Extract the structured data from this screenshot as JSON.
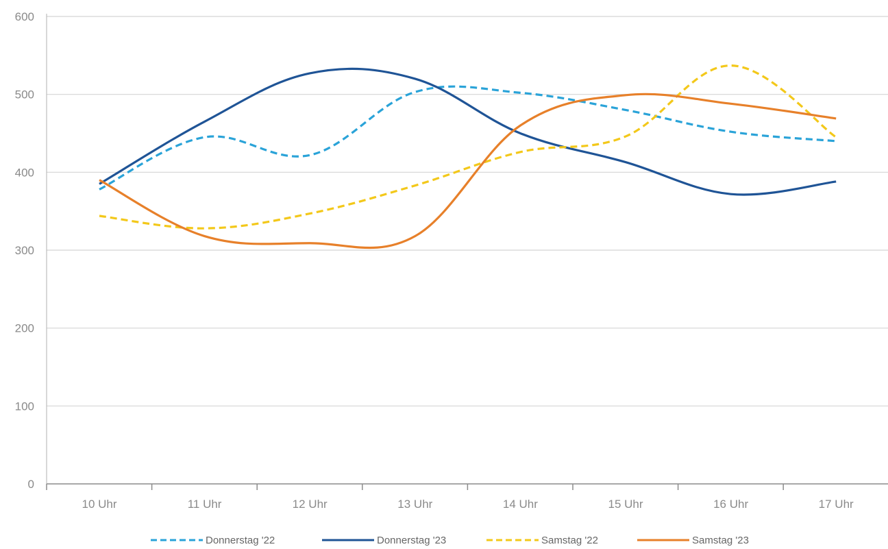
{
  "chart_data": {
    "type": "line",
    "categories": [
      "10 Uhr",
      "11 Uhr",
      "12 Uhr",
      "13 Uhr",
      "14 Uhr",
      "15 Uhr",
      "16 Uhr",
      "17 Uhr"
    ],
    "ylim": [
      0,
      600
    ],
    "yticks": [
      0,
      100,
      200,
      300,
      400,
      500,
      600
    ],
    "grid": true,
    "legend_position": "bottom",
    "series": [
      {
        "name": "Donnerstag '22",
        "color": "#2aa3d8",
        "dashed": true,
        "values": [
          378,
          445,
          422,
          503,
          502,
          480,
          452,
          440
        ]
      },
      {
        "name": "Donnerstag '23",
        "color": "#1f5496",
        "dashed": false,
        "values": [
          385,
          465,
          527,
          520,
          450,
          413,
          372,
          388
        ]
      },
      {
        "name": "Samstag '22",
        "color": "#f3c81a",
        "dashed": true,
        "values": [
          344,
          328,
          347,
          383,
          426,
          446,
          537,
          445
        ]
      },
      {
        "name": "Samstag '23",
        "color": "#e7802a",
        "dashed": false,
        "values": [
          390,
          318,
          309,
          318,
          460,
          499,
          488,
          469
        ]
      }
    ]
  }
}
